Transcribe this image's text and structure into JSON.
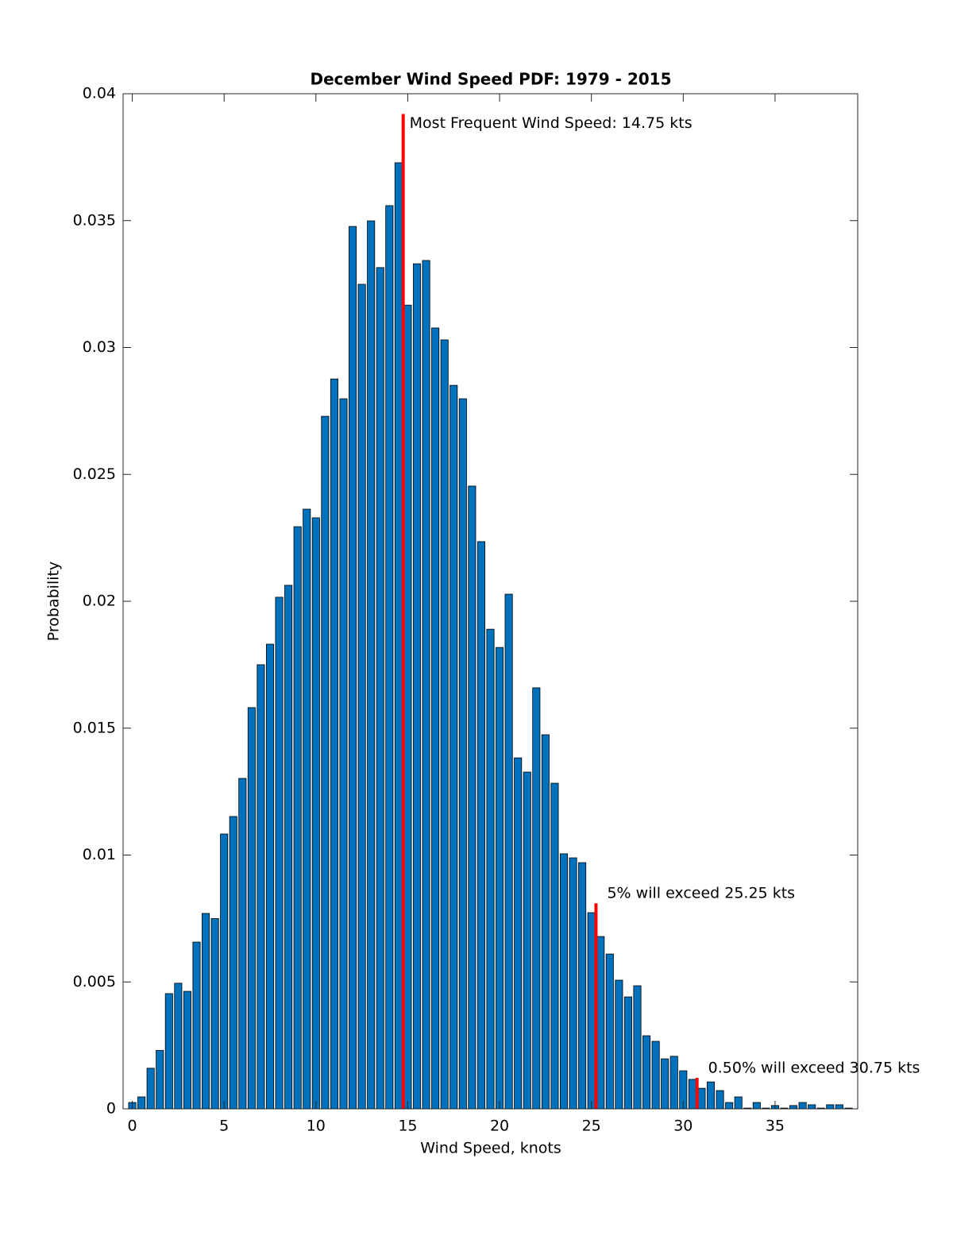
{
  "chart_data": {
    "type": "bar",
    "title": "December Wind Speed PDF: 1979 - 2015",
    "x_label": "Wind Speed, knots",
    "y_label": "Probability",
    "color": "#0072bd",
    "edge_color": "#000000",
    "x": [
      0,
      0.5,
      1,
      1.5,
      2,
      2.5,
      3,
      3.5,
      4,
      4.5,
      5,
      5.5,
      6,
      6.5,
      7,
      7.5,
      8,
      8.5,
      9,
      9.5,
      10,
      10.5,
      11,
      11.5,
      12,
      12.5,
      13,
      13.5,
      14,
      14.5,
      15,
      15.5,
      16,
      16.5,
      17,
      17.5,
      18,
      18.5,
      19,
      19.5,
      20,
      20.5,
      21,
      21.5,
      22,
      22.5,
      23,
      23.5,
      24,
      24.5,
      25,
      25.5,
      26,
      26.5,
      27,
      27.5,
      28,
      28.5,
      29,
      29.5,
      30,
      30.5,
      31,
      31.5,
      32,
      32.5,
      33,
      33.5,
      34,
      34.5,
      35,
      35.5,
      36,
      36.5,
      37,
      37.5,
      38,
      38.5,
      39
    ],
    "values": [
      0.00025,
      0.00047,
      0.0016,
      0.0023,
      0.00454,
      0.00495,
      0.00463,
      0.00657,
      0.0077,
      0.0075,
      0.01083,
      0.01152,
      0.01302,
      0.01581,
      0.0175,
      0.01831,
      0.02016,
      0.02063,
      0.02294,
      0.02363,
      0.02329,
      0.02729,
      0.02876,
      0.02798,
      0.03477,
      0.03249,
      0.03499,
      0.03315,
      0.03559,
      0.03728,
      0.03167,
      0.0333,
      0.03343,
      0.03077,
      0.0303,
      0.02851,
      0.02798,
      0.02454,
      0.02235,
      0.0189,
      0.01818,
      0.02028,
      0.01383,
      0.01327,
      0.01659,
      0.01474,
      0.01283,
      0.01005,
      0.00989,
      0.0097,
      0.00773,
      0.00679,
      0.0061,
      0.00507,
      0.00441,
      0.00485,
      0.00288,
      0.00266,
      0.00197,
      0.00207,
      0.0015,
      0.00116,
      0.00081,
      0.00106,
      0.00072,
      0.00025,
      0.00047,
      3e-05,
      0.00025,
      3e-05,
      0.00013,
      3e-05,
      0.00013,
      0.00025,
      0.00016,
      3e-05,
      0.00016,
      0.00016,
      3e-05
    ],
    "bar_width": 0.4,
    "xlim": [
      -0.5,
      39.5
    ],
    "xticks": [
      0,
      5,
      10,
      15,
      20,
      25,
      30,
      35
    ],
    "ylim": [
      0,
      0.04
    ],
    "yticks": [
      0,
      0.005,
      0.01,
      0.015,
      0.02,
      0.025,
      0.03,
      0.035,
      0.04
    ],
    "markers": [
      {
        "x": 14.75,
        "top": 0.0392,
        "color": "#ff0000",
        "label": "Most Frequent Wind Speed: 14.75 kts"
      },
      {
        "x": 25.25,
        "top": 0.0081,
        "color": "#ff0000",
        "label": "5% will exceed 25.25 kts"
      },
      {
        "x": 30.75,
        "top": 0.00122,
        "color": "#ff0000",
        "label": "0.50% will exceed 30.75 kts"
      }
    ]
  }
}
